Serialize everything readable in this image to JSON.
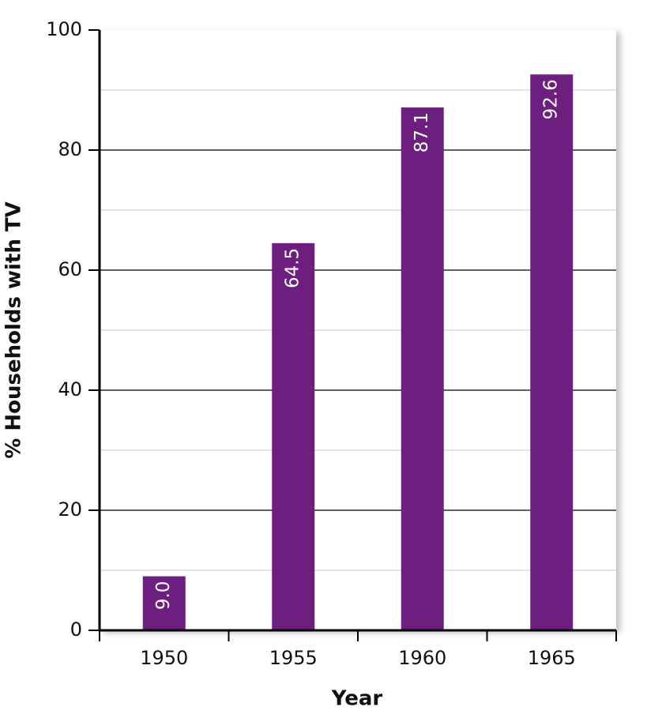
{
  "chart_data": {
    "type": "bar",
    "x_label": "Year",
    "y_label": "% Households with TV",
    "categories": [
      "1950",
      "1955",
      "1960",
      "1965"
    ],
    "values": [
      9.0,
      64.5,
      87.1,
      92.6
    ],
    "value_labels": [
      "9.0",
      "64.5",
      "87.1",
      "92.6"
    ],
    "color": "#6d1f80",
    "ylim": [
      0,
      100
    ],
    "yticks": [
      0,
      20,
      40,
      60,
      80,
      100
    ],
    "grid": true
  }
}
